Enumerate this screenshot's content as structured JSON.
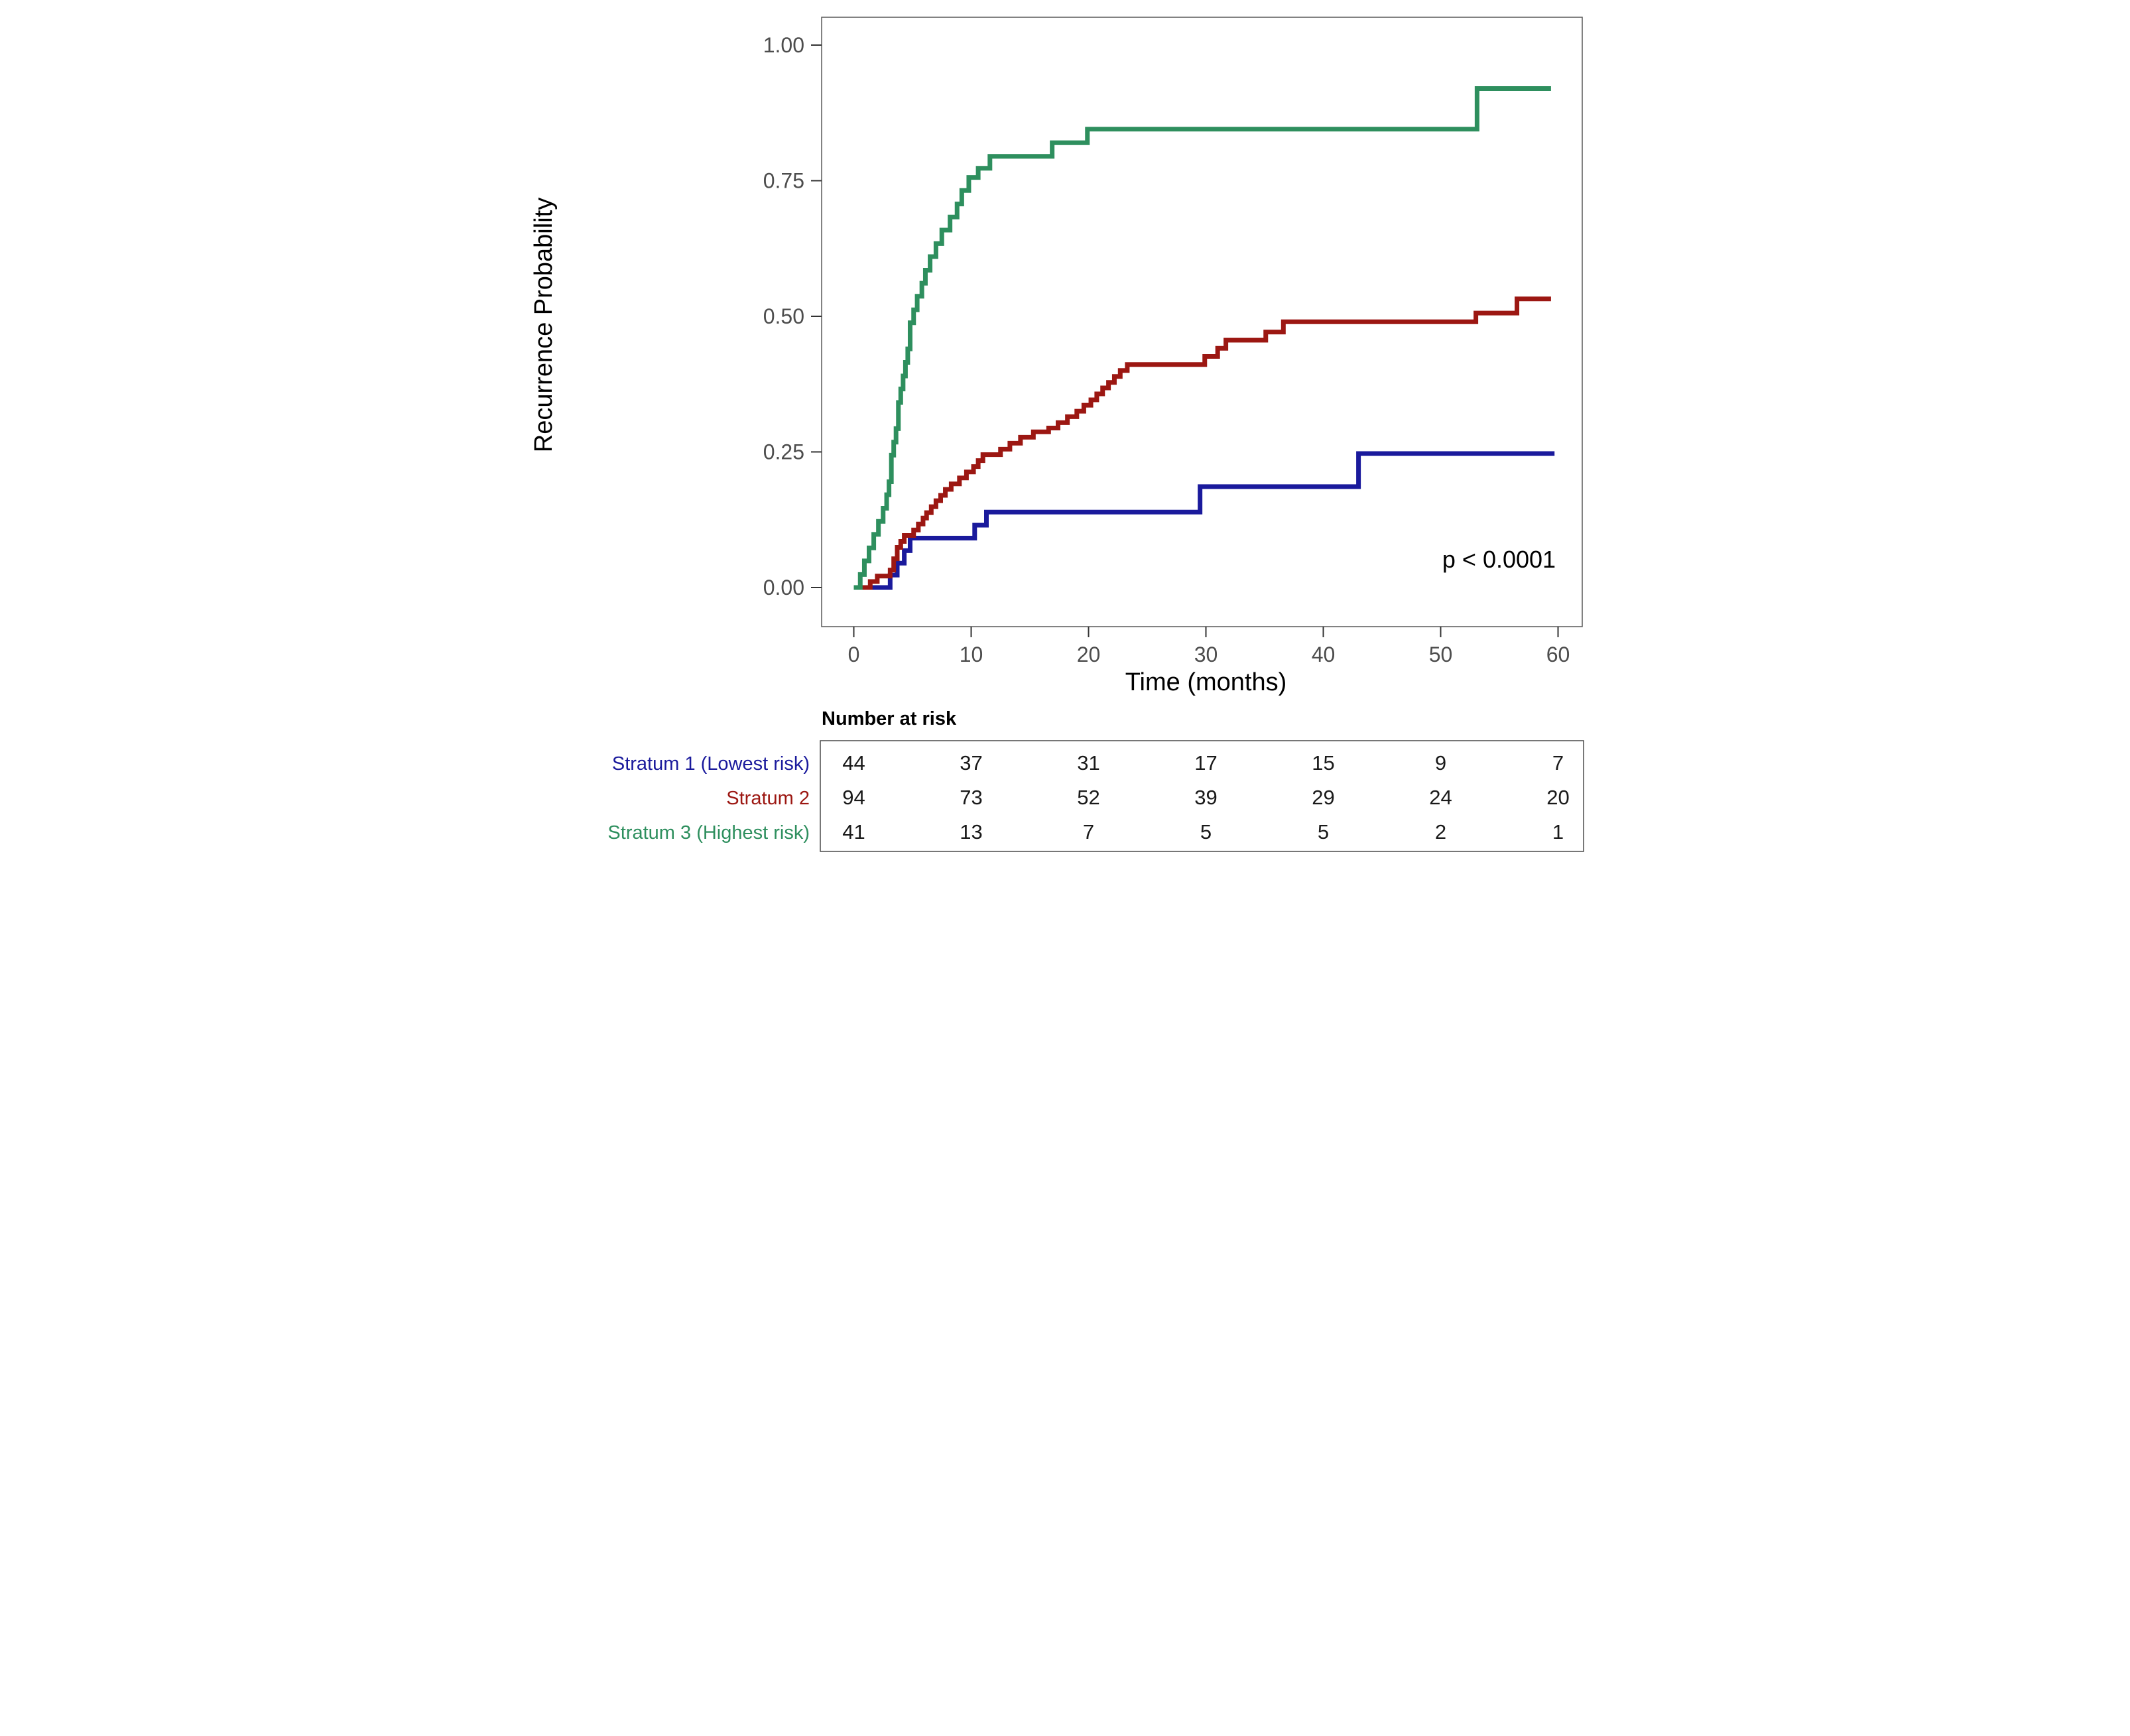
{
  "chart_data": {
    "type": "line",
    "subtype": "kaplan-meier-step",
    "title": "",
    "xlabel": "Time (months)",
    "ylabel": "Recurrence Probability",
    "xlim": [
      0,
      60
    ],
    "ylim": [
      0,
      1
    ],
    "x_ticks": [
      0,
      10,
      20,
      30,
      40,
      50,
      60
    ],
    "x_tick_labels": [
      "0",
      "10",
      "20",
      "30",
      "40",
      "50",
      "60"
    ],
    "y_ticks": [
      0,
      0.25,
      0.5,
      0.75,
      1.0
    ],
    "y_tick_labels": [
      "0.00",
      "0.25",
      "0.50",
      "0.75",
      "1.00"
    ],
    "grid": false,
    "legend_position": "none",
    "annotation": "p < 0.0001",
    "line_width": 14,
    "axes": {
      "x_domain": [
        0,
        60
      ],
      "x_range": [
        969,
        3093
      ],
      "y_domain": [
        0,
        1
      ],
      "y_range": [
        1772,
        136
      ]
    },
    "series": [
      {
        "id": "stratum-1-lowest-risk",
        "name": "Stratum 1 (Lowest risk)",
        "color": "#1A1A9C",
        "end_time": 59.7,
        "points": [
          [
            0,
            0
          ],
          [
            3.1,
            0.023
          ],
          [
            3.7,
            0.045
          ],
          [
            4.3,
            0.068
          ],
          [
            4.8,
            0.091
          ],
          [
            10.3,
            0.115
          ],
          [
            11.3,
            0.139
          ],
          [
            29.5,
            0.186
          ],
          [
            43.0,
            0.247
          ]
        ]
      },
      {
        "id": "stratum-2",
        "name": "Stratum 2",
        "color": "#9C1712",
        "end_time": 59.4,
        "points": [
          [
            0,
            0
          ],
          [
            1.4,
            0.011
          ],
          [
            2.0,
            0.021
          ],
          [
            3.1,
            0.032
          ],
          [
            3.4,
            0.053
          ],
          [
            3.7,
            0.074
          ],
          [
            4.0,
            0.085
          ],
          [
            4.3,
            0.096
          ],
          [
            5.1,
            0.106
          ],
          [
            5.5,
            0.117
          ],
          [
            5.9,
            0.128
          ],
          [
            6.2,
            0.138
          ],
          [
            6.6,
            0.149
          ],
          [
            7.0,
            0.16
          ],
          [
            7.4,
            0.17
          ],
          [
            7.8,
            0.181
          ],
          [
            8.3,
            0.191
          ],
          [
            9.0,
            0.202
          ],
          [
            9.6,
            0.213
          ],
          [
            10.2,
            0.223
          ],
          [
            10.6,
            0.234
          ],
          [
            11.0,
            0.245
          ],
          [
            12.5,
            0.255
          ],
          [
            13.3,
            0.266
          ],
          [
            14.2,
            0.277
          ],
          [
            15.3,
            0.287
          ],
          [
            16.6,
            0.294
          ],
          [
            17.4,
            0.304
          ],
          [
            18.2,
            0.315
          ],
          [
            19.0,
            0.325
          ],
          [
            19.6,
            0.336
          ],
          [
            20.2,
            0.346
          ],
          [
            20.7,
            0.357
          ],
          [
            21.2,
            0.368
          ],
          [
            21.7,
            0.378
          ],
          [
            22.2,
            0.389
          ],
          [
            22.7,
            0.4
          ],
          [
            23.3,
            0.411
          ],
          [
            29.9,
            0.426
          ],
          [
            31.0,
            0.441
          ],
          [
            31.7,
            0.456
          ],
          [
            35.1,
            0.471
          ],
          [
            36.6,
            0.49
          ],
          [
            53.0,
            0.506
          ],
          [
            56.5,
            0.532
          ]
        ]
      },
      {
        "id": "stratum-3-highest-risk",
        "name": "Stratum 3 (Highest risk)",
        "color": "#2E8F5E",
        "end_time": 59.4,
        "points": [
          [
            0,
            0
          ],
          [
            0.55,
            0.024
          ],
          [
            0.9,
            0.049
          ],
          [
            1.3,
            0.073
          ],
          [
            1.7,
            0.098
          ],
          [
            2.1,
            0.122
          ],
          [
            2.5,
            0.146
          ],
          [
            2.8,
            0.171
          ],
          [
            3.0,
            0.195
          ],
          [
            3.2,
            0.244
          ],
          [
            3.4,
            0.268
          ],
          [
            3.6,
            0.293
          ],
          [
            3.8,
            0.341
          ],
          [
            4.0,
            0.366
          ],
          [
            4.2,
            0.39
          ],
          [
            4.4,
            0.415
          ],
          [
            4.6,
            0.44
          ],
          [
            4.8,
            0.488
          ],
          [
            5.1,
            0.512
          ],
          [
            5.4,
            0.537
          ],
          [
            5.8,
            0.561
          ],
          [
            6.1,
            0.585
          ],
          [
            6.5,
            0.61
          ],
          [
            7.0,
            0.634
          ],
          [
            7.5,
            0.659
          ],
          [
            8.2,
            0.683
          ],
          [
            8.8,
            0.707
          ],
          [
            9.2,
            0.732
          ],
          [
            9.8,
            0.756
          ],
          [
            10.6,
            0.773
          ],
          [
            11.6,
            0.795
          ],
          [
            16.9,
            0.82
          ],
          [
            19.9,
            0.845
          ],
          [
            53.1,
            0.92
          ]
        ]
      }
    ]
  },
  "risk_table": {
    "header": "Number at risk",
    "time_points": [
      0,
      10,
      20,
      30,
      40,
      50,
      60
    ],
    "rows": [
      {
        "label": "Stratum 1 (Lowest risk)",
        "color": "#1A1A9C",
        "counts": [
          "44",
          "37",
          "31",
          "17",
          "15",
          "9",
          "7"
        ]
      },
      {
        "label": "Stratum 2",
        "color": "#9C1712",
        "counts": [
          "94",
          "73",
          "52",
          "39",
          "29",
          "24",
          "20"
        ]
      },
      {
        "label": "Stratum 3 (Highest risk)",
        "color": "#2E8F5E",
        "counts": [
          "41",
          "13",
          "7",
          "5",
          "5",
          "2",
          "1"
        ]
      }
    ]
  }
}
